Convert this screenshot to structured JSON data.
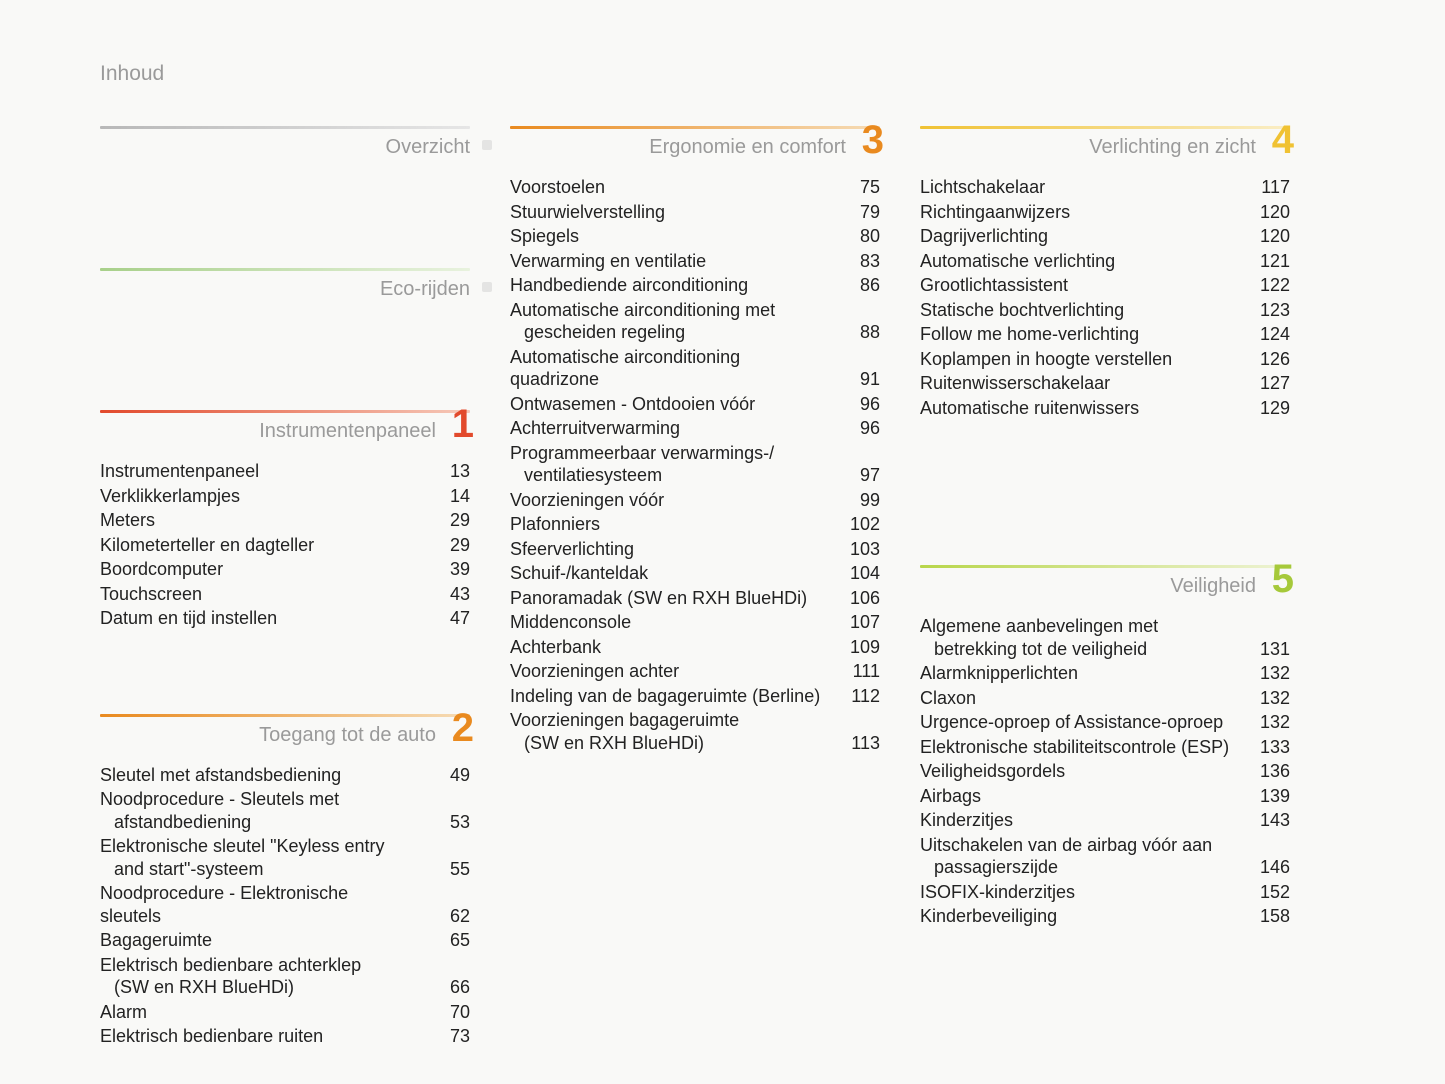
{
  "pageTitle": "Inhoud",
  "colors": {
    "grad_gray": "linear-gradient(90deg,#b8b8b8 0%,#e6e6e6 100%)",
    "grad_green": "linear-gradient(90deg,#a8d08a 0%,#e8f2de 100%)",
    "grad_red": "linear-gradient(90deg,#e24a2c 0%,#f6c9b9 100%)",
    "grad_orange": "linear-gradient(90deg,#e98a1f 0%,#f6dcb6 100%)",
    "grad_amber": "linear-gradient(90deg,#f0c233 0%,#faeec6 100%)",
    "grad_lime": "linear-gradient(90deg,#b8d64a 0%,#eef3d5 100%)",
    "num_red": "#e24a2c",
    "num_orange": "#e98a1f",
    "num_amber": "#f0c233",
    "num_lime": "#a6c93a",
    "title_gray": "#9a9a9a",
    "text": "#222",
    "bg": "#f9f9f7"
  },
  "columns": [
    {
      "sections": [
        {
          "title": "Overzicht",
          "ruleColorKey": "grad_gray",
          "showDot": true,
          "items": [],
          "gapAfter": 56
        },
        {
          "title": "Eco-rijden",
          "ruleColorKey": "grad_green",
          "showDot": true,
          "items": [],
          "gapAfter": 56
        },
        {
          "title": "Instrumentenpaneel",
          "number": "1",
          "numColorKey": "num_red",
          "ruleColorKey": "grad_red",
          "items": [
            {
              "label": "Instrumentenpaneel",
              "page": "13"
            },
            {
              "label": "Verklikkerlampjes",
              "page": "14"
            },
            {
              "label": "Meters",
              "page": "29"
            },
            {
              "label": "Kilometerteller en dagteller",
              "page": "29"
            },
            {
              "label": "Boordcomputer",
              "page": "39"
            },
            {
              "label": "Touchscreen",
              "page": "43"
            },
            {
              "label": "Datum en tijd instellen",
              "page": "47"
            }
          ],
          "gapAfter": 48
        },
        {
          "title": "Toegang tot de auto",
          "number": "2",
          "numColorKey": "num_orange",
          "ruleColorKey": "grad_orange",
          "items": [
            {
              "label": "Sleutel met afstandsbediening",
              "page": "49"
            },
            {
              "label": "Noodprocedure - Sleutels met",
              "labelCont": "afstandbediening",
              "page": "53"
            },
            {
              "label": "Elektronische sleutel \"Keyless entry",
              "labelCont": "and start\"-systeem",
              "page": "55"
            },
            {
              "label": "Noodprocedure - Elektronische sleutels",
              "page": "62"
            },
            {
              "label": "Bagageruimte",
              "page": "65"
            },
            {
              "label": "Elektrisch bedienbare achterklep",
              "labelCont": "(SW en RXH BlueHDi)",
              "page": "66"
            },
            {
              "label": "Alarm",
              "page": "70"
            },
            {
              "label": "Elektrisch bedienbare ruiten",
              "page": "73"
            }
          ]
        }
      ]
    },
    {
      "sections": [
        {
          "title": "Ergonomie en comfort",
          "number": "3",
          "numColorKey": "num_orange",
          "ruleColorKey": "grad_orange",
          "items": [
            {
              "label": "Voorstoelen",
              "page": "75"
            },
            {
              "label": "Stuurwielverstelling",
              "page": "79"
            },
            {
              "label": "Spiegels",
              "page": "80"
            },
            {
              "label": "Verwarming en ventilatie",
              "page": "83"
            },
            {
              "label": "Handbediende airconditioning",
              "page": "86"
            },
            {
              "label": "Automatische airconditioning met",
              "labelCont": "gescheiden regeling",
              "page": "88"
            },
            {
              "label": "Automatische airconditioning quadrizone",
              "page": "91"
            },
            {
              "label": "Ontwasemen - Ontdooien vóór",
              "page": "96"
            },
            {
              "label": "Achterruitverwarming",
              "page": "96"
            },
            {
              "label": "Programmeerbaar verwarmings-/",
              "labelCont": "ventilatiesysteem",
              "page": "97"
            },
            {
              "label": "Voorzieningen vóór",
              "page": "99"
            },
            {
              "label": "Plafonniers",
              "page": "102"
            },
            {
              "label": "Sfeerverlichting",
              "page": "103"
            },
            {
              "label": "Schuif-/kanteldak",
              "page": "104"
            },
            {
              "label": "Panoramadak (SW en RXH BlueHDi)",
              "page": "106"
            },
            {
              "label": "Middenconsole",
              "page": "107"
            },
            {
              "label": "Achterbank",
              "page": "109"
            },
            {
              "label": "Voorzieningen achter",
              "page": "111"
            },
            {
              "label": "Indeling van de bagageruimte (Berline)",
              "page": "112"
            },
            {
              "label": "Voorzieningen bagageruimte",
              "labelCont": "(SW en RXH BlueHDi)",
              "page": "113"
            }
          ]
        }
      ]
    },
    {
      "sections": [
        {
          "title": "Verlichting en zicht",
          "number": "4",
          "numColorKey": "num_amber",
          "ruleColorKey": "grad_amber",
          "items": [
            {
              "label": "Lichtschakelaar",
              "page": "117"
            },
            {
              "label": "Richtingaanwijzers",
              "page": "120"
            },
            {
              "label": "Dagrijverlichting",
              "page": "120"
            },
            {
              "label": "Automatische verlichting",
              "page": "121"
            },
            {
              "label": "Grootlichtassistent",
              "page": "122"
            },
            {
              "label": "Statische bochtverlichting",
              "page": "123"
            },
            {
              "label": "Follow me home-verlichting",
              "page": "124"
            },
            {
              "label": "Koplampen in hoogte verstellen",
              "page": "126"
            },
            {
              "label": "Ruitenwisserschakelaar",
              "page": "127"
            },
            {
              "label": "Automatische ruitenwissers",
              "page": "129"
            }
          ],
          "gapAfter": 110
        },
        {
          "title": "Veiligheid",
          "number": "5",
          "numColorKey": "num_lime",
          "ruleColorKey": "grad_lime",
          "items": [
            {
              "label": "Algemene aanbevelingen met",
              "labelCont": "betrekking tot de veiligheid",
              "page": "131"
            },
            {
              "label": "Alarmknipperlichten",
              "page": "132"
            },
            {
              "label": "Claxon",
              "page": "132"
            },
            {
              "label": "Urgence-oproep of Assistance-oproep",
              "page": "132"
            },
            {
              "label": "Elektronische stabiliteitscontrole (ESP)",
              "page": "133"
            },
            {
              "label": "Veiligheidsgordels",
              "page": "136"
            },
            {
              "label": "Airbags",
              "page": "139"
            },
            {
              "label": "Kinderzitjes",
              "page": "143"
            },
            {
              "label": "Uitschakelen van de airbag vóór aan",
              "labelCont": "passagierszijde",
              "page": "146"
            },
            {
              "label": "ISOFIX-kinderzitjes",
              "page": "152"
            },
            {
              "label": "Kinderbeveiliging",
              "page": "158"
            }
          ]
        }
      ]
    }
  ]
}
